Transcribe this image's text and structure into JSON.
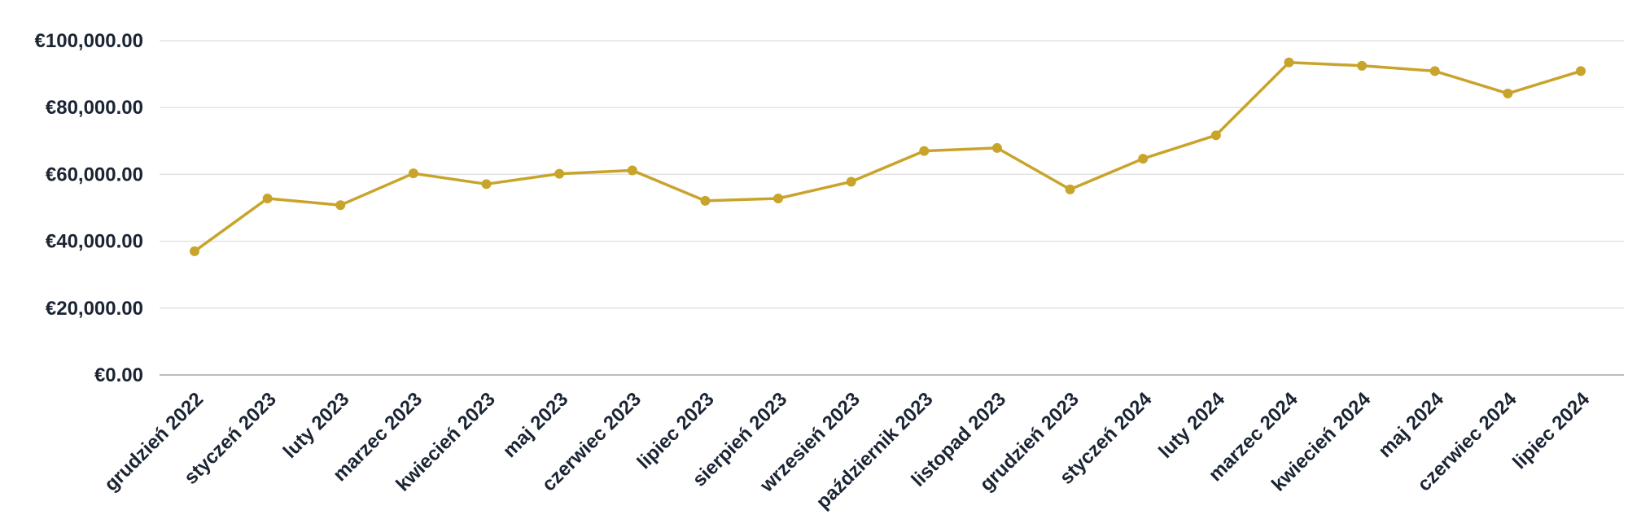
{
  "chart_data": {
    "type": "line",
    "title": "",
    "xlabel": "",
    "ylabel": "",
    "ylim": [
      0,
      100000
    ],
    "yticks": [
      0,
      20000,
      40000,
      60000,
      80000,
      100000
    ],
    "ytick_labels": [
      "€0.00",
      "€20,000.00",
      "€40,000.00",
      "€60,000.00",
      "€80,000.00",
      "€100,000.00"
    ],
    "grid": true,
    "legend": "none",
    "categories": [
      "grudzień 2022",
      "styczeń 2023",
      "luty 2023",
      "marzec 2023",
      "kwiecień 2023",
      "maj 2023",
      "czerwiec 2023",
      "lipiec 2023",
      "sierpień 2023",
      "wrzesień 2023",
      "październik 2023",
      "listopad 2023",
      "grudzień 2023",
      "styczeń 2024",
      "luty 2024",
      "marzec 2024",
      "kwiecień 2024",
      "maj 2024",
      "czerwiec 2024",
      "lipiec 2024"
    ],
    "series": [
      {
        "values": [
          37000,
          52800,
          50800,
          60300,
          57100,
          60200,
          61200,
          52100,
          52800,
          57800,
          67000,
          67900,
          55500,
          64700,
          71700,
          93500,
          92500,
          90900,
          84200,
          90900
        ],
        "color": "#c9a42b"
      }
    ]
  }
}
